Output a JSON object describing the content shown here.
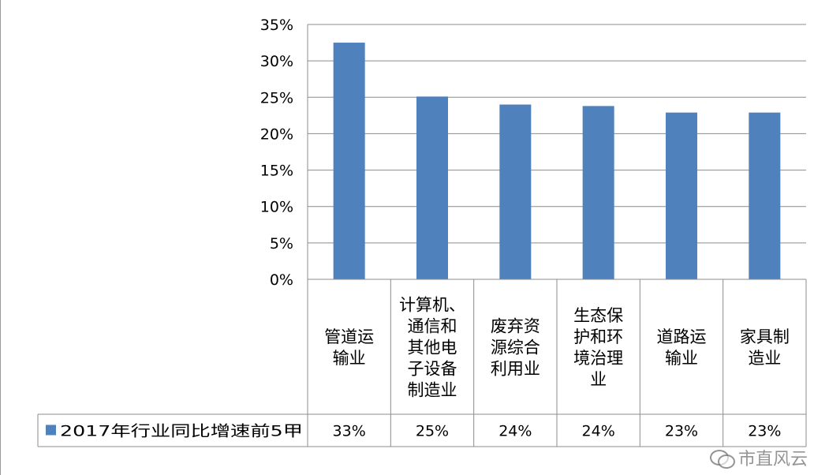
{
  "chart_data": {
    "type": "bar",
    "categories": [
      [
        "管道运",
        "输业"
      ],
      [
        "计算机、",
        "通信和",
        "其他电",
        "子设备",
        "制造业"
      ],
      [
        "废弃资",
        "源综合",
        "利用业"
      ],
      [
        "生态保",
        "护和环",
        "境治理",
        "业"
      ],
      [
        "道路运",
        "输业"
      ],
      [
        "家具制",
        "造业"
      ]
    ],
    "series": [
      {
        "name": "2017年行业同比增速前5甲",
        "values": [
          0.325,
          0.251,
          0.24,
          0.238,
          0.229,
          0.229
        ],
        "table_labels": [
          "33%",
          "25%",
          "24%",
          "24%",
          "23%",
          "23%"
        ],
        "color": "#4f81bd"
      }
    ],
    "y_ticks": [
      "0%",
      "5%",
      "10%",
      "15%",
      "20%",
      "25%",
      "30%",
      "35%"
    ],
    "ylim": [
      0,
      0.35
    ],
    "grid": true,
    "legend": "data-table"
  },
  "watermark": {
    "text": "市直风云",
    "icon": "wechat-icon"
  }
}
